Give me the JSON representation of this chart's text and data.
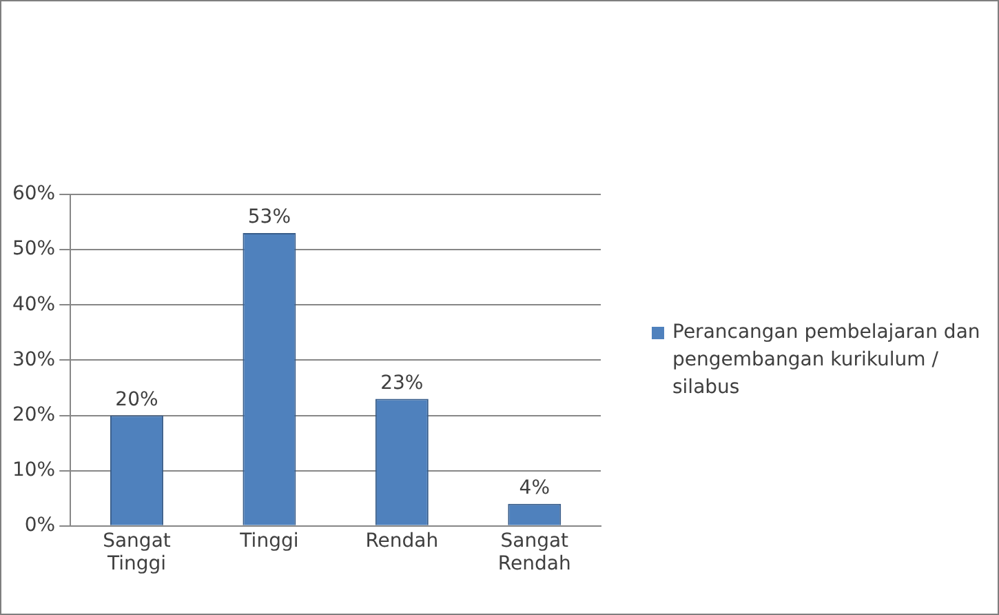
{
  "chart_data": {
    "type": "bar",
    "categories": [
      "Sangat Tinggi",
      "Tinggi",
      "Rendah",
      "Sangat Rendah"
    ],
    "series": [
      {
        "name": "Perancangan pembelajaran dan pengembangan kurikulum / silabus",
        "color": "#4f81bd",
        "values": [
          20,
          53,
          23,
          4
        ],
        "value_labels": [
          "20%",
          "53%",
          "23%",
          "4%"
        ]
      }
    ],
    "ylim": [
      0,
      60
    ],
    "yticks": [
      {
        "value": 0,
        "label": "0%"
      },
      {
        "value": 10,
        "label": "10%"
      },
      {
        "value": 20,
        "label": "20%"
      },
      {
        "value": 30,
        "label": "30%"
      },
      {
        "value": 40,
        "label": "40%"
      },
      {
        "value": 50,
        "label": "50%"
      },
      {
        "value": 60,
        "label": "60%"
      }
    ],
    "grid": "y",
    "legend": "right"
  }
}
